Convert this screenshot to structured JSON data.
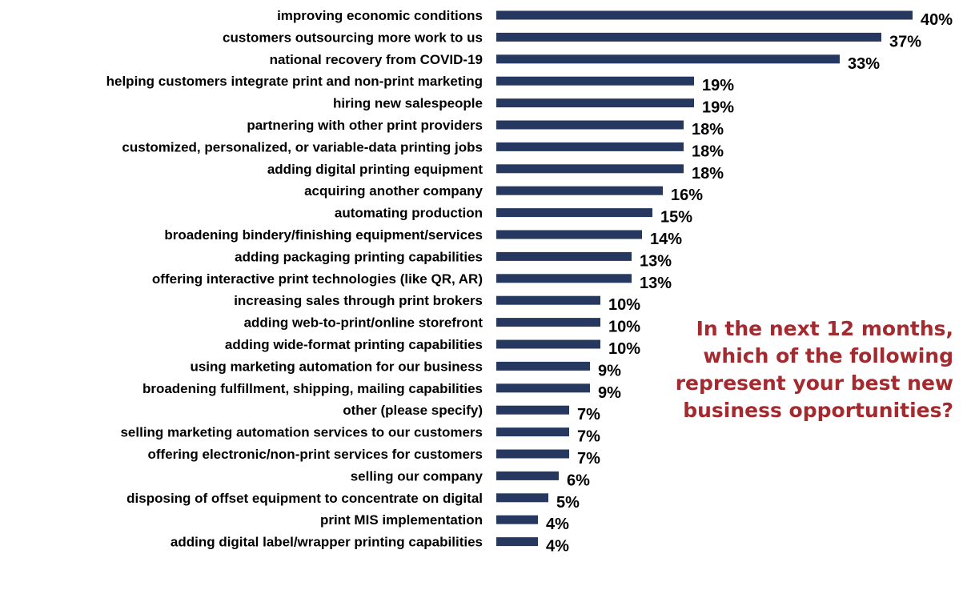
{
  "question": "In the next 12 months, which of the following represent your best new business opportunities?",
  "colors": {
    "bar": "#26385f",
    "question_text": "#a32a2f"
  },
  "chart_data": {
    "type": "bar",
    "orientation": "horizontal",
    "categories": [
      "improving economic conditions",
      "customers outsourcing more work to us",
      "national recovery from COVID-19",
      "helping customers integrate print and non-print marketing",
      "hiring new salespeople",
      "partnering with other print providers",
      "customized, personalized, or variable-data printing jobs",
      "adding digital printing equipment",
      "acquiring another company",
      "automating production",
      "broadening bindery/finishing equipment/services",
      "adding packaging printing capabilities",
      "offering interactive print technologies  (like QR, AR)",
      "increasing sales through print brokers",
      "adding web-to-print/online storefront",
      "adding wide-format printing capabilities",
      "using marketing automation for our business",
      "broadening fulfillment, shipping, mailing capabilities",
      "other (please specify)",
      "selling marketing automation services to our customers",
      "offering electronic/non-print services for customers",
      "selling our company",
      "disposing of offset equipment to concentrate on digital",
      "print MIS implementation",
      "adding digital label/wrapper printing capabilities"
    ],
    "values": [
      40,
      37,
      33,
      19,
      19,
      18,
      18,
      18,
      16,
      15,
      14,
      13,
      13,
      10,
      10,
      10,
      9,
      9,
      7,
      7,
      7,
      6,
      5,
      4,
      4
    ],
    "value_labels": [
      "40%",
      "37%",
      "33%",
      "19%",
      "19%",
      "18%",
      "18%",
      "18%",
      "16%",
      "15%",
      "14%",
      "13%",
      "13%",
      "10%",
      "10%",
      "10%",
      "9%",
      "9%",
      "7%",
      "7%",
      "7%",
      "6%",
      "5%",
      "4%",
      "4%"
    ],
    "unit": "%",
    "xlim": [
      0,
      40
    ],
    "grid": false,
    "legend": "none"
  }
}
